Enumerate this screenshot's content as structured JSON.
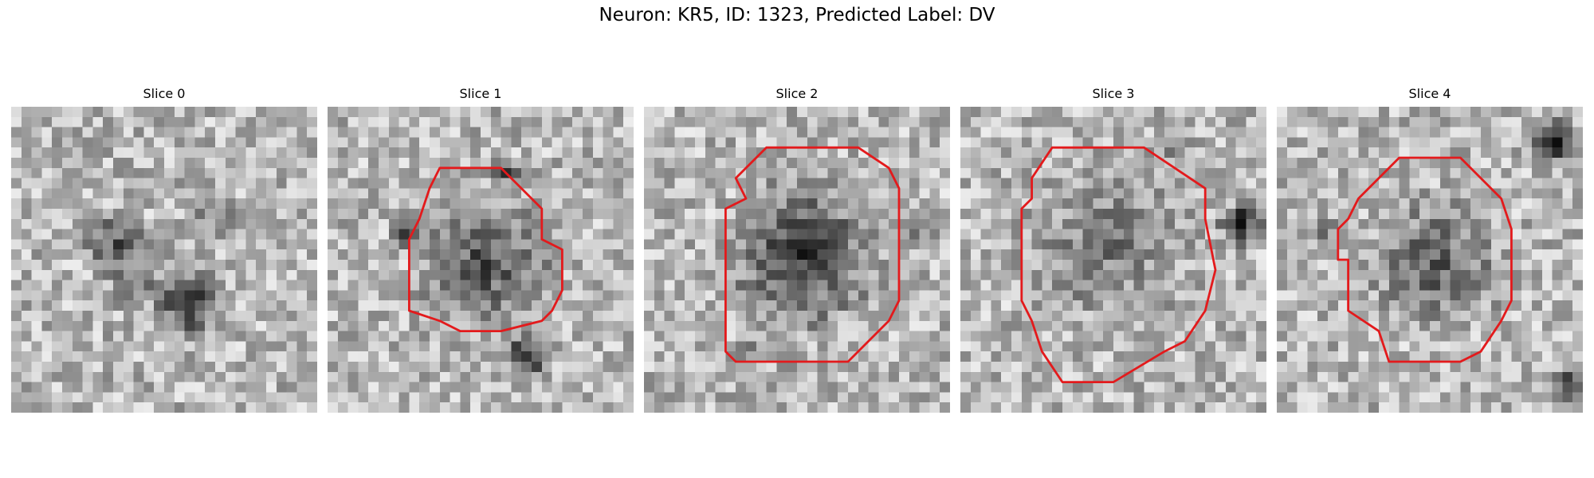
{
  "figure": {
    "title": "Neuron: KR5, ID: 1323, Predicted Label: DV",
    "contour_color": "#e31a1c",
    "colormap": "grayscale"
  },
  "panels": [
    {
      "title": "Slice 0",
      "has_contour": false
    },
    {
      "title": "Slice 1",
      "has_contour": true
    },
    {
      "title": "Slice 2",
      "has_contour": true
    },
    {
      "title": "Slice 3",
      "has_contour": true
    },
    {
      "title": "Slice 4",
      "has_contour": true
    }
  ]
}
